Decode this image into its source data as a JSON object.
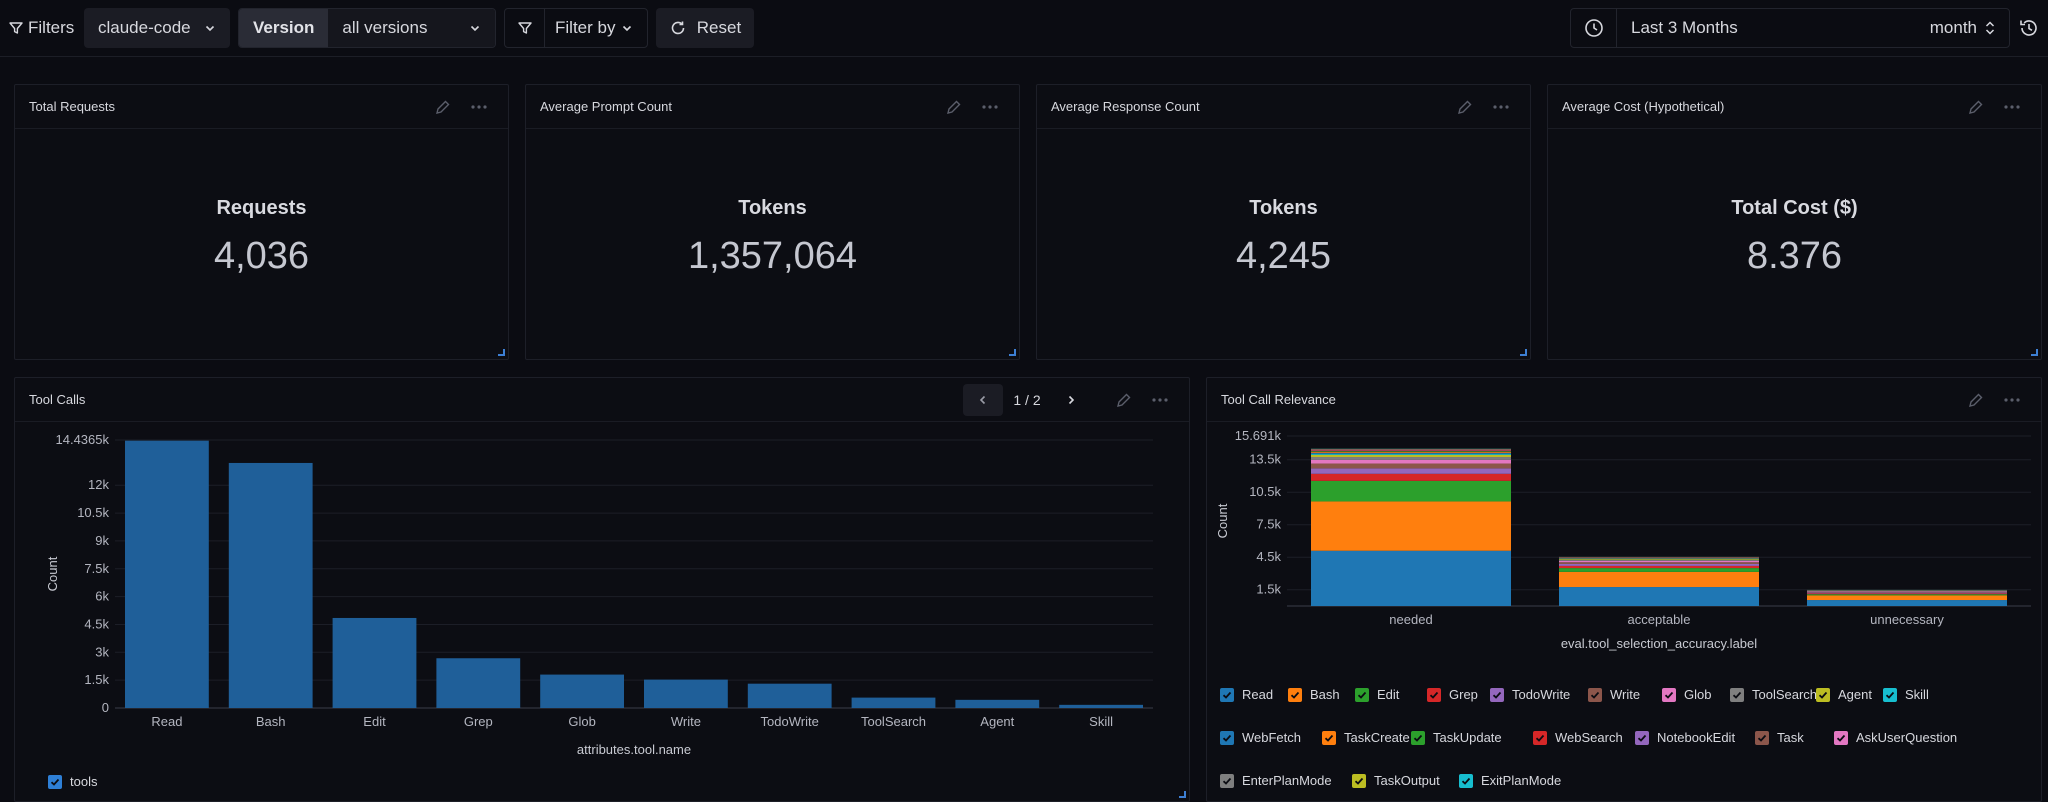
{
  "topbar": {
    "filters_label": "Filters",
    "service_value": "claude-code",
    "version_label": "Version",
    "version_value": "all versions",
    "filter_by_label": "Filter by",
    "reset_label": "Reset",
    "time_range": "Last 3 Months",
    "granularity": "month"
  },
  "stats": [
    {
      "title": "Total Requests",
      "label": "Requests",
      "value": "4,036"
    },
    {
      "title": "Average Prompt Count",
      "label": "Tokens",
      "value": "1,357,064"
    },
    {
      "title": "Average Response Count",
      "label": "Tokens",
      "value": "4,245"
    },
    {
      "title": "Average Cost (Hypothetical)",
      "label": "Total Cost ($)",
      "value": "8.376"
    }
  ],
  "tool_calls": {
    "title": "Tool Calls",
    "page": "1 / 2",
    "legend_label": "tools",
    "colors": {
      "bar": "#1f5f99",
      "check": "#2e7fd6"
    }
  },
  "relevance": {
    "title": "Tool Call Relevance"
  },
  "chart_data": [
    {
      "type": "bar",
      "title": "Tool Calls",
      "xlabel": "attributes.tool.name",
      "ylabel": "Count",
      "categories": [
        "Read",
        "Bash",
        "Edit",
        "Grep",
        "Glob",
        "Write",
        "TodoWrite",
        "ToolSearch",
        "Agent",
        "Skill"
      ],
      "series": [
        {
          "name": "tools",
          "values": [
            14400,
            13200,
            4850,
            2680,
            1800,
            1530,
            1310,
            560,
            440,
            170
          ]
        }
      ],
      "ylim": [
        0,
        14436.5
      ],
      "yticks": [
        0,
        1500,
        3000,
        4500,
        6000,
        7500,
        9000,
        10500,
        12000,
        14436.5
      ],
      "ytick_labels": [
        "0",
        "1.5k",
        "3k",
        "4.5k",
        "6k",
        "7.5k",
        "9k",
        "10.5k",
        "12k",
        "14.4365k"
      ],
      "grid": true,
      "legend": "bottom-left"
    },
    {
      "type": "bar",
      "stacked": true,
      "title": "Tool Call Relevance",
      "xlabel": "eval.tool_selection_accuracy.label",
      "ylabel": "Count",
      "categories": [
        "needed",
        "acceptable",
        "unnecessary"
      ],
      "ylim": [
        0,
        15691
      ],
      "yticks": [
        1500,
        4500,
        7500,
        10500,
        13500,
        15691
      ],
      "ytick_labels": [
        "1.5k",
        "4.5k",
        "7.5k",
        "10.5k",
        "13.5k",
        "15.691k"
      ],
      "grid": true,
      "legend": "bottom",
      "series": [
        {
          "name": "Read",
          "color": "#1f77b4",
          "values": [
            5100,
            1750,
            550
          ]
        },
        {
          "name": "Bash",
          "color": "#ff7f0e",
          "values": [
            4550,
            1400,
            430
          ]
        },
        {
          "name": "Edit",
          "color": "#2ca02c",
          "values": [
            1900,
            350,
            110
          ]
        },
        {
          "name": "Grep",
          "color": "#d62728",
          "values": [
            650,
            200,
            80
          ]
        },
        {
          "name": "TodoWrite",
          "color": "#9467bd",
          "values": [
            500,
            180,
            70
          ]
        },
        {
          "name": "Write",
          "color": "#8c564b",
          "values": [
            450,
            160,
            60
          ]
        },
        {
          "name": "Glob",
          "color": "#e377c2",
          "values": [
            350,
            130,
            50
          ]
        },
        {
          "name": "ToolSearch",
          "color": "#7f7f7f",
          "values": [
            250,
            90,
            30
          ]
        },
        {
          "name": "Agent",
          "color": "#bcbd22",
          "values": [
            200,
            70,
            25
          ]
        },
        {
          "name": "Skill",
          "color": "#17becf",
          "values": [
            100,
            40,
            15
          ]
        },
        {
          "name": "WebFetch",
          "color": "#1f77b4",
          "values": [
            90,
            30,
            10
          ]
        },
        {
          "name": "TaskCreate",
          "color": "#ff7f0e",
          "values": [
            80,
            25,
            10
          ]
        },
        {
          "name": "TaskUpdate",
          "color": "#2ca02c",
          "values": [
            70,
            25,
            8
          ]
        },
        {
          "name": "WebSearch",
          "color": "#d62728",
          "values": [
            60,
            20,
            8
          ]
        },
        {
          "name": "NotebookEdit",
          "color": "#9467bd",
          "values": [
            40,
            15,
            5
          ]
        },
        {
          "name": "Task",
          "color": "#8c564b",
          "values": [
            40,
            15,
            5
          ]
        },
        {
          "name": "AskUserQuestion",
          "color": "#e377c2",
          "values": [
            30,
            10,
            5
          ]
        },
        {
          "name": "EnterPlanMode",
          "color": "#7f7f7f",
          "values": [
            20,
            8,
            4
          ]
        },
        {
          "name": "TaskOutput",
          "color": "#bcbd22",
          "values": [
            20,
            8,
            4
          ]
        },
        {
          "name": "ExitPlanMode",
          "color": "#17becf",
          "values": [
            15,
            6,
            3
          ]
        }
      ]
    }
  ]
}
